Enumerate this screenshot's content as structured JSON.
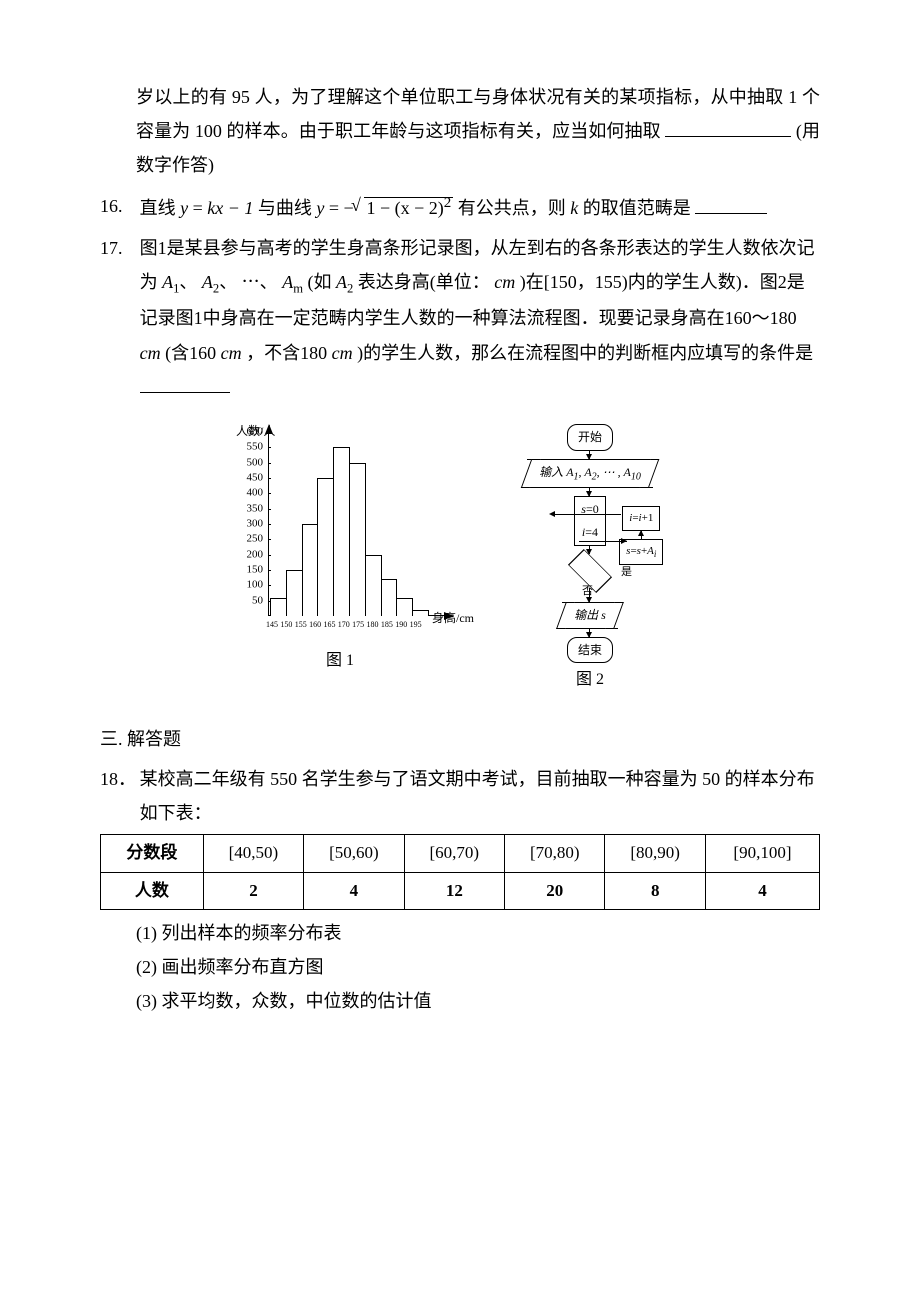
{
  "q15": {
    "cont1": "岁以上的有 95 人，为了理解这个单位职工与身体状况有关的某项指标，从中抽取 1 个容量为 100 的样本。由于职工年龄与这项指标有关，应当如何抽取",
    "cont2": "(用数字作答)"
  },
  "q16": {
    "num": "16.",
    "pre": "直线",
    "eq1_lhs": "y",
    "eq1_rhs": "kx − 1",
    "mid": "与曲线",
    "eq2_lhs": "y",
    "eq2_rhs_inner": "1 − (x − 2)",
    "eq2_sup": "2",
    "post1": " 有公共点，则",
    "kvar": "k",
    "post2": " 的取值范畴是"
  },
  "q17": {
    "num": "17.",
    "p1a": "图1是某县参与高考的学生身高条形记录图，从左到右的各条形表达的学生人数依次记为",
    "a1": "A",
    "s1": "1",
    "a2": "A",
    "s2": "2",
    "am": "A",
    "sm": "m",
    "p1b": "(如",
    "ax": "A",
    "sx": "2",
    "p1c": "表达身高(单位：",
    "unit": "cm",
    "p1d": ")在[150，155)内的学生人数)．图2是记录图1中身高在一定范畴内学生人数的一种算法流程图．现要记录身高在160～180",
    "unit2": "cm",
    "p1e": "(含160",
    "unit3": "cm",
    "p1f": "，不含180",
    "unit4": "cm",
    "p1g": ")的学生人数，那么在流程图中的判断框内应填写的条件是"
  },
  "fig1": {
    "caption": "图 1",
    "ylabel": "人数/人",
    "xlabel": "身高/cm",
    "ymax": 600,
    "yticks": [
      50,
      100,
      150,
      200,
      250,
      300,
      350,
      400,
      450,
      500,
      550,
      600
    ],
    "xticks": [
      "145",
      "150",
      "155",
      "160",
      "165",
      "170",
      "175",
      "180",
      "185",
      "190",
      "195"
    ],
    "bars": [
      60,
      150,
      300,
      450,
      550,
      500,
      200,
      120,
      60,
      20
    ],
    "bar_border": "#000000",
    "bg": "#ffffff"
  },
  "fig2": {
    "caption": "图 2",
    "start": "开始",
    "input": "输入 A₁, A₂, ⋯ , A₁₀",
    "init1": "s=0",
    "init2": "i=4",
    "yes": "是",
    "no": "否",
    "side1": "s=s+Aᵢ",
    "side2": "i=i+1",
    "output": "输出 s",
    "end": "结束"
  },
  "sec3": {
    "title": "三. 解答题"
  },
  "q18": {
    "num": "18．",
    "body": "某校高二年级有 550 名学生参与了语文期中考试，目前抽取一种容量为 50 的样本分布如下表：",
    "table": {
      "headers": [
        "分数段",
        "[40,50)",
        "[50,60)",
        "[60,70)",
        "[70,80)",
        "[80,90)",
        "[90,100]"
      ],
      "row_label": "人数",
      "row": [
        "2",
        "4",
        "12",
        "20",
        "8",
        "4"
      ]
    },
    "sub1": "(1) 列出样本的频率分布表",
    "sub2": "(2) 画出频率分布直方图",
    "sub3": "(3) 求平均数，众数，中位数的估计值"
  }
}
